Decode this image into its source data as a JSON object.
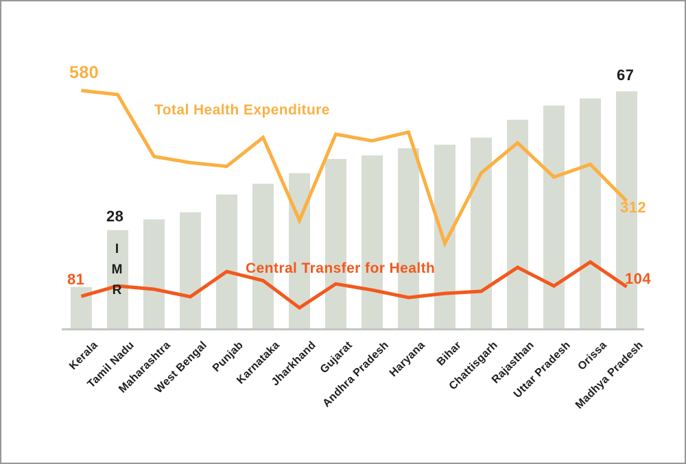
{
  "chart_data": {
    "type": "bar",
    "subtype": "combo-bar-with-two-lines",
    "title": "",
    "xlabel": "",
    "ylabel": "",
    "grid": false,
    "legend_position": "inline-text-labels",
    "axis_color": "#C2C6BF",
    "background": "#ffffff",
    "categories": [
      "Kerala",
      "Tamil Nadu",
      "Maharashtra",
      "West Bengal",
      "Punjab",
      "Karnataka",
      "Jharkhand",
      "Gujarat",
      "Andhra Pradesh",
      "Haryana",
      "Bihar",
      "Chattisgarh",
      "Rajasthan",
      "Uttar Pradesh",
      "Orissa",
      "Madhya Pradesh"
    ],
    "bar_series": {
      "name": "IMR",
      "color": "#D8DDD3",
      "values": [
        12,
        28,
        31,
        33,
        38,
        41,
        44,
        48,
        49,
        51,
        52,
        54,
        59,
        63,
        65,
        67
      ],
      "ylim": [
        0,
        70
      ],
      "value_labels": [
        {
          "category": "Tamil Nadu",
          "index": 1,
          "text": "28"
        },
        {
          "category": "Madhya Pradesh",
          "index": 15,
          "text": "67"
        }
      ]
    },
    "line_series": [
      {
        "name": "Total Health Expenditure",
        "color": "#FBB042",
        "values": [
          580,
          570,
          420,
          405,
          396,
          466,
          265,
          474,
          458,
          479,
          209,
          380,
          453,
          370,
          401,
          312
        ],
        "start_label": "580",
        "end_label": "312",
        "ylim": [
          0,
          600
        ]
      },
      {
        "name": "Central Transfer for Health",
        "color": "#F2591D",
        "values": [
          81,
          106,
          98,
          80,
          141,
          119,
          53,
          111,
          96,
          78,
          88,
          93,
          151,
          106,
          164,
          104
        ],
        "start_label": "81",
        "end_label": "104",
        "ylim": [
          0,
          600
        ]
      }
    ]
  }
}
